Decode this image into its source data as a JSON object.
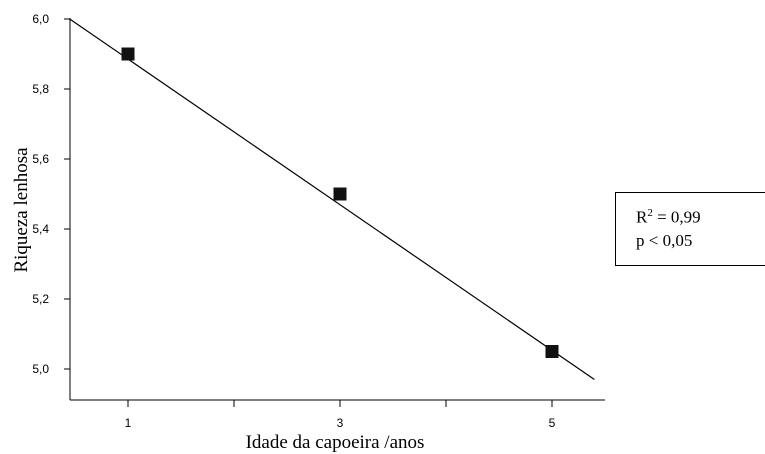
{
  "chart_data": {
    "type": "scatter",
    "title": "",
    "xlabel": "Idade da capoeira /anos",
    "ylabel": "Riqueza lenhosa",
    "x_ticks": [
      1,
      3,
      5
    ],
    "x_tick_labels": [
      "1",
      "3",
      "5"
    ],
    "x_minor_ticks": [
      2,
      4
    ],
    "y_ticks": [
      5.0,
      5.2,
      5.4,
      5.6,
      5.8,
      6.0
    ],
    "y_tick_labels": [
      "5,0",
      "5,2",
      "5,4",
      "5,6",
      "5,8",
      "6,0"
    ],
    "xlim": [
      0.45,
      5.5
    ],
    "ylim": [
      4.9,
      6.0
    ],
    "grid": false,
    "series": [
      {
        "points": [
          {
            "x": 1,
            "y": 5.9
          },
          {
            "x": 3,
            "y": 5.5
          },
          {
            "x": 5,
            "y": 5.05
          }
        ]
      }
    ],
    "fit_line": {
      "x_start": 0.45,
      "y_start": 6.0,
      "x_end": 5.4,
      "y_end": 4.97
    },
    "annotation": {
      "r2_prefix": "R",
      "r2_exp": "2",
      "r2_value": " = 0,99",
      "p_line": "p < 0,05"
    }
  }
}
